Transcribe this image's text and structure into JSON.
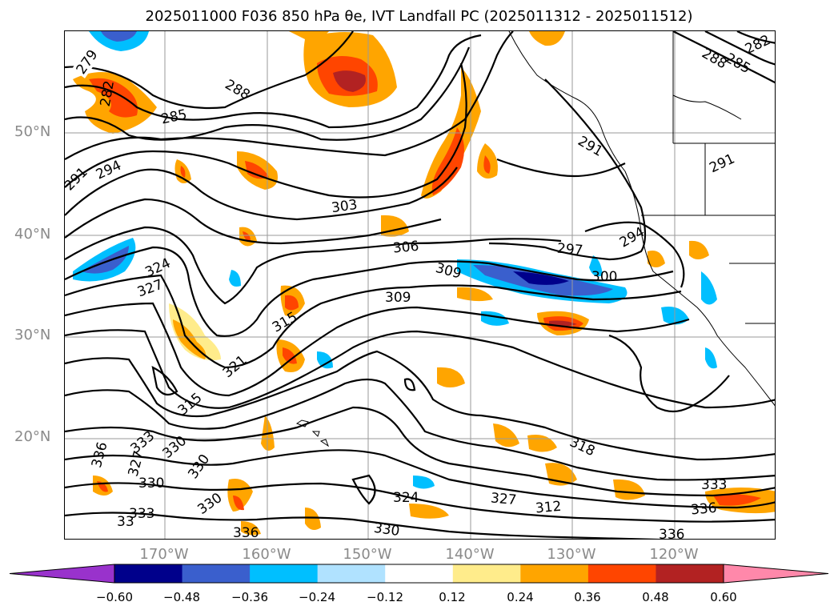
{
  "title": "2025011000 F036 850 hPa θe, IVT Landfall PC (2025011312 - 2025011512)",
  "map": {
    "lat_labels": [
      "50°N",
      "40°N",
      "30°N",
      "20°N"
    ],
    "lon_labels": [
      "170°W",
      "160°W",
      "150°W",
      "140°W",
      "130°W",
      "120°W"
    ],
    "contour_labels": [
      "279",
      "282",
      "285",
      "288",
      "291",
      "294",
      "303",
      "306",
      "309",
      "309",
      "297",
      "300",
      "294",
      "291",
      "291",
      "288",
      "285",
      "282",
      "324",
      "327",
      "315",
      "321",
      "315",
      "336",
      "333",
      "330",
      "327",
      "330",
      "330",
      "330",
      "333",
      "33",
      "336",
      "330",
      "324",
      "327",
      "312",
      "318",
      "333",
      "336"
    ],
    "gridline_color": "#9a9a9a",
    "contour_color": "#000000"
  },
  "colorbar": {
    "tick_labels": [
      "−0.60",
      "−0.48",
      "−0.36",
      "−0.24",
      "−0.12",
      "0.12",
      "0.24",
      "0.36",
      "0.48",
      "0.60"
    ],
    "bin_colors": [
      "#9932cc",
      "#00008b",
      "#3a5fcd",
      "#00bfff",
      "#b0e2ff",
      "#ffffff",
      "#ffec8b",
      "#ffa500",
      "#ff4500",
      "#b22222",
      "#ff88aa"
    ],
    "extend": "both"
  }
}
